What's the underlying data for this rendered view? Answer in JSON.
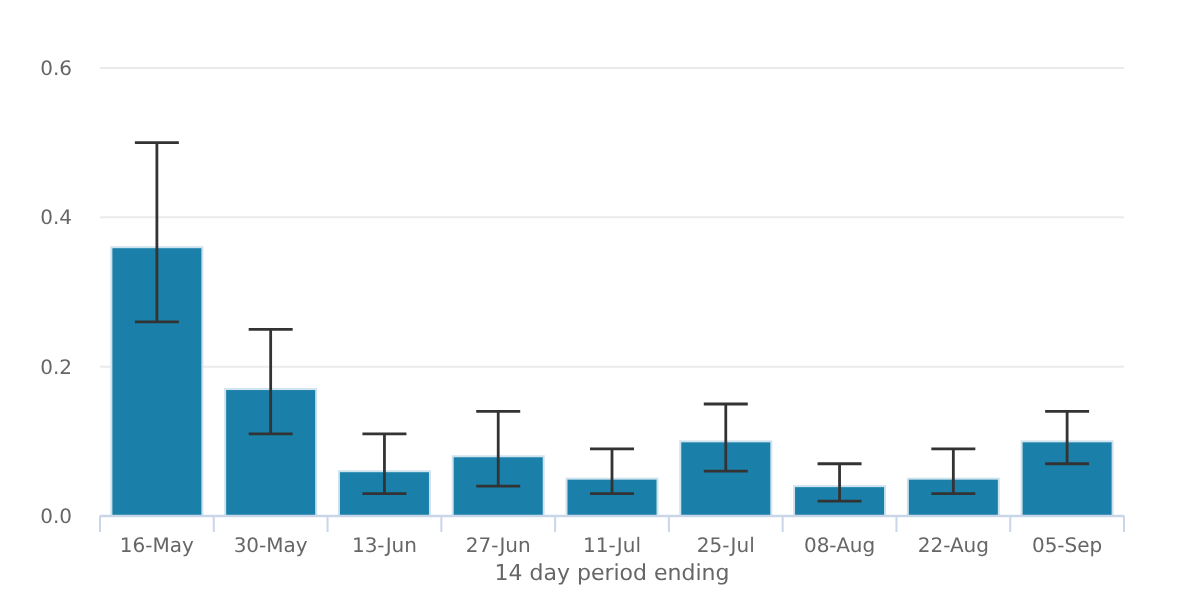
{
  "chart_data": {
    "type": "bar",
    "xlabel": "14 day period ending",
    "categories": [
      "16-May",
      "30-May",
      "13-Jun",
      "27-Jun",
      "11-Jul",
      "25-Jul",
      "08-Aug",
      "22-Aug",
      "05-Sep"
    ],
    "values": [
      0.36,
      0.17,
      0.06,
      0.08,
      0.05,
      0.1,
      0.04,
      0.05,
      0.1
    ],
    "errors": [
      [
        0.26,
        0.5
      ],
      [
        0.11,
        0.25
      ],
      [
        0.03,
        0.11
      ],
      [
        0.04,
        0.14
      ],
      [
        0.03,
        0.09
      ],
      [
        0.06,
        0.15
      ],
      [
        0.02,
        0.07
      ],
      [
        0.03,
        0.09
      ],
      [
        0.07,
        0.14
      ]
    ],
    "color": "#1a80aa",
    "ylim": [
      0,
      0.6
    ],
    "yticks": [
      {
        "value": 0,
        "label": "0.0"
      },
      0.2,
      0.4,
      0.6
    ],
    "grid": "y"
  }
}
